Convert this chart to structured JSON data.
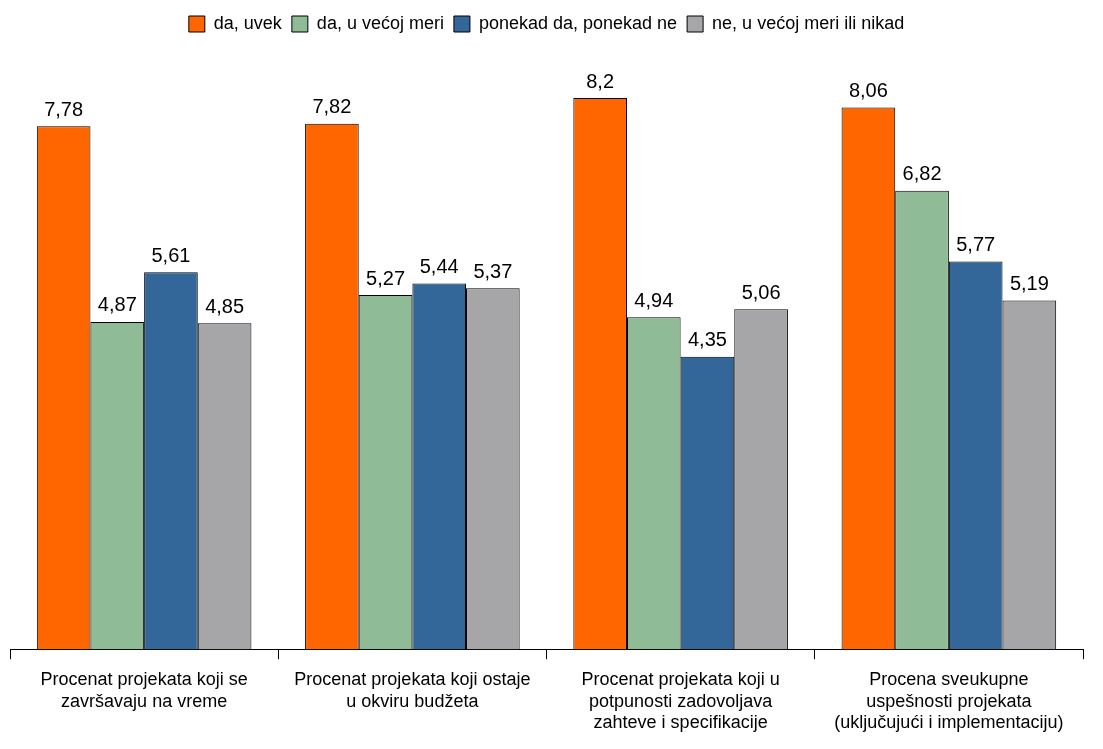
{
  "chart_data": {
    "type": "bar",
    "categories": [
      "Procenat projekata koji se završavaju na vreme",
      "Procenat projekata koji ostaje u okviru budžeta",
      "Procenat projekata koji u potpunosti zadovoljava zahteve i specifikacije",
      "Procena sveukupne uspešnosti projekata (uključujući i implementaciju)"
    ],
    "series": [
      {
        "name": "da, uvek",
        "color": "#ff6600",
        "values": [
          7.78,
          7.82,
          8.2,
          8.06
        ],
        "value_labels": [
          "7,78",
          "7,82",
          "8,2",
          "8,06"
        ]
      },
      {
        "name": "da, u većoj meri",
        "color": "#8fbc96",
        "values": [
          4.87,
          5.27,
          4.94,
          6.82
        ],
        "value_labels": [
          "4,87",
          "5,27",
          "4,94",
          "6,82"
        ]
      },
      {
        "name": "ponekad da, ponekad ne",
        "color": "#336699",
        "values": [
          5.61,
          5.44,
          4.35,
          5.77
        ],
        "value_labels": [
          "5,61",
          "5,44",
          "4,35",
          "5,77"
        ]
      },
      {
        "name": "ne, u većoj meri ili nikad",
        "color": "#a6a6a8",
        "values": [
          4.85,
          5.37,
          5.06,
          5.19
        ],
        "value_labels": [
          "4,85",
          "5,37",
          "5,06",
          "5,19"
        ]
      }
    ],
    "legend": "top",
    "grid": false
  }
}
